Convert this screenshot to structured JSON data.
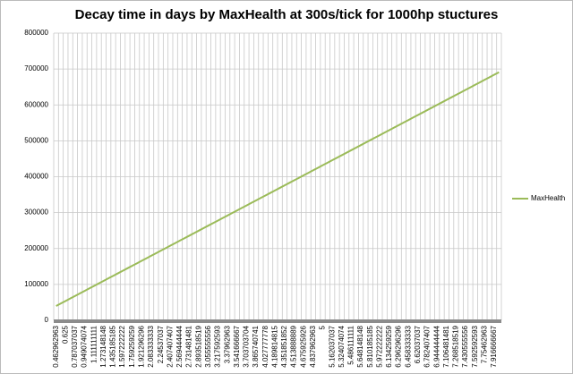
{
  "chart_data": {
    "type": "line",
    "title": "Decay time in days by MaxHealth at 300s/tick for 1000hp stuctures",
    "categories": [
      "0.462962963",
      null,
      "0.625",
      null,
      "0.787037037",
      null,
      "0.949074074",
      null,
      "1.111111111",
      null,
      "1.273148148",
      null,
      "1.435185185",
      null,
      "1.597222222",
      null,
      "1.759259259",
      null,
      "1.921296296",
      null,
      "2.083333333",
      null,
      "2.24537037",
      null,
      "2.407407407",
      null,
      "2.569444444",
      null,
      "2.731481481",
      null,
      "2.893518519",
      null,
      "3.055555556",
      null,
      "3.217592593",
      null,
      "3.37962963",
      null,
      "3.541666667",
      null,
      "3.703703704",
      null,
      "3.865740741",
      null,
      "4.027777778",
      null,
      "4.189814815",
      null,
      "4.351851852",
      null,
      "4.513888889",
      null,
      "4.675925926",
      null,
      "4.837962963",
      null,
      "5",
      null,
      "5.162037037",
      null,
      "5.324074074",
      null,
      "5.486111111",
      null,
      "5.648148148",
      null,
      "5.810185185",
      null,
      "5.972222222",
      null,
      "6.134259259",
      null,
      "6.296296296",
      null,
      "6.458333333",
      null,
      "6.62037037",
      null,
      "6.782407407",
      null,
      "6.944444444",
      null,
      "7.106481481",
      null,
      "7.268518519",
      null,
      "7.430555556",
      null,
      "7.592592593",
      null,
      "7.75462963",
      null,
      "7.916666667",
      null
    ],
    "series": [
      {
        "name": "MaxHealth",
        "color": "#9bbb59",
        "values": [
          40000,
          47000,
          54000,
          61000,
          68000,
          75000,
          82000,
          89000,
          96000,
          103000,
          110000,
          117000,
          124000,
          131000,
          138000,
          145000,
          152000,
          159000,
          166000,
          173000,
          180000,
          187000,
          194000,
          201000,
          208000,
          215000,
          222000,
          229000,
          236000,
          243000,
          250000,
          257000,
          264000,
          271000,
          278000,
          285000,
          292000,
          299000,
          306000,
          313000,
          320000,
          327000,
          334000,
          341000,
          348000,
          355000,
          362000,
          369000,
          376000,
          383000,
          390000,
          397000,
          404000,
          411000,
          418000,
          425000,
          432000,
          439000,
          446000,
          453000,
          460000,
          467000,
          474000,
          481000,
          488000,
          495000,
          502000,
          509000,
          516000,
          523000,
          530000,
          537000,
          544000,
          551000,
          558000,
          565000,
          572000,
          579000,
          586000,
          593000,
          600000,
          607000,
          614000,
          621000,
          628000,
          635000,
          642000,
          649000,
          656000,
          663000,
          670000,
          677000,
          684000,
          691000
        ]
      }
    ],
    "ylim": [
      0,
      800000
    ],
    "yticks": [
      0,
      100000,
      200000,
      300000,
      400000,
      500000,
      600000,
      700000,
      800000
    ],
    "grid": true,
    "legend": "right"
  }
}
